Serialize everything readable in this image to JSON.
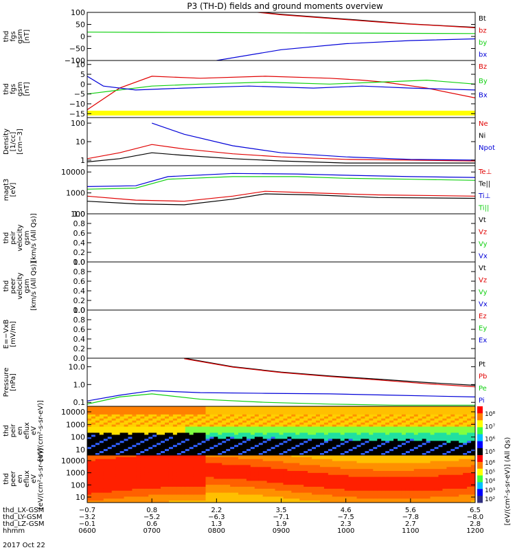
{
  "title": "P3 (TH-D) fields and ground moments overview",
  "date_label": "2017 Oct 22",
  "colors": {
    "black": "#000000",
    "red": "#e00000",
    "green": "#10d010",
    "blue": "#0000d8",
    "yellow": "#ffff00"
  },
  "chart_data": [
    {
      "id": "fgs-gsm",
      "type": "line",
      "ylabel": [
        "thd",
        "fgs",
        "gsm",
        "[nT]"
      ],
      "yticks": [
        "100",
        "50",
        "0",
        "−50",
        "−100"
      ],
      "ylim": [
        -100,
        100
      ],
      "legend": [
        {
          "text": "Bt",
          "color": "black"
        },
        {
          "text": "bz",
          "color": "red"
        },
        {
          "text": "by",
          "color": "green"
        },
        {
          "text": "bx",
          "color": "blue"
        }
      ],
      "series": [
        {
          "name": "Bt",
          "color": "black",
          "x": [
            0.35,
            0.5,
            0.6,
            0.7,
            0.8,
            0.9,
            1.0,
            1.1,
            1.2
          ],
          "y": [
            130,
            105,
            92,
            82,
            72,
            62,
            52,
            45,
            38
          ]
        },
        {
          "name": "bz",
          "color": "red",
          "x": [
            0.35,
            0.5,
            0.6,
            0.7,
            0.8,
            0.9,
            1.0,
            1.1,
            1.2
          ],
          "y": [
            130,
            104,
            90,
            80,
            70,
            60,
            51,
            44,
            36
          ]
        },
        {
          "name": "by",
          "color": "green",
          "x": [
            0,
            0.2,
            0.4,
            0.6,
            0.8,
            1.0,
            1.2
          ],
          "y": [
            18,
            17,
            16,
            15,
            14,
            13,
            12
          ]
        },
        {
          "name": "bx",
          "color": "blue",
          "x": [
            0.4,
            0.6,
            0.8,
            1.0,
            1.2
          ],
          "y": [
            -100,
            -55,
            -30,
            -17,
            -10
          ]
        }
      ]
    },
    {
      "id": "fgs-dsl",
      "type": "line",
      "ylabel": [
        "thd",
        "fgs",
        "gsm",
        "[nT]"
      ],
      "yticks": [
        "10",
        "5",
        "0",
        "−5",
        "−10",
        "−15"
      ],
      "ylim": [
        -17,
        12
      ],
      "legend": [
        {
          "text": "Bz",
          "color": "red"
        },
        {
          "text": "By",
          "color": "green"
        },
        {
          "text": "Bx",
          "color": "blue"
        }
      ],
      "series": [
        {
          "name": "Bz",
          "color": "red",
          "x": [
            0,
            0.1,
            0.2,
            0.35,
            0.55,
            0.75,
            0.85,
            0.92,
            1.05,
            1.2
          ],
          "y": [
            -13,
            -2,
            4,
            3,
            4,
            3,
            2,
            1,
            -2,
            -7
          ]
        },
        {
          "name": "By",
          "color": "green",
          "x": [
            0,
            0.1,
            0.2,
            0.35,
            0.55,
            0.75,
            0.9,
            1.05,
            1.2
          ],
          "y": [
            -5,
            -3,
            -1,
            0,
            1,
            0,
            1,
            2,
            0
          ]
        },
        {
          "name": "Bx",
          "color": "blue",
          "x": [
            0,
            0.05,
            0.15,
            0.3,
            0.5,
            0.7,
            0.85,
            1.0,
            1.2
          ],
          "y": [
            4,
            -1,
            -3,
            -2,
            -1,
            -2,
            -1,
            -2,
            -3
          ]
        }
      ]
    },
    {
      "id": "density",
      "type": "line",
      "ylabel": [
        "Density",
        "[1/cc]",
        "[cm−3]"
      ],
      "yticks": [
        "100",
        "10",
        "1"
      ],
      "yscale": "log",
      "ylim": [
        0.5,
        200
      ],
      "legend": [
        {
          "text": "Ne",
          "color": "red"
        },
        {
          "text": "Ni",
          "color": "black"
        },
        {
          "text": "Npot",
          "color": "blue"
        }
      ],
      "series": [
        {
          "name": "Ne",
          "color": "red",
          "x": [
            0,
            0.1,
            0.2,
            0.3,
            0.45,
            0.6,
            0.8,
            1.0,
            1.2
          ],
          "y": [
            1.2,
            2.5,
            7,
            4,
            2.2,
            1.5,
            1.1,
            1.0,
            0.9
          ]
        },
        {
          "name": "Ni",
          "color": "black",
          "x": [
            0,
            0.1,
            0.2,
            0.3,
            0.45,
            0.6,
            0.8,
            1.0,
            1.2
          ],
          "y": [
            0.8,
            1.2,
            2.5,
            1.8,
            1.2,
            0.9,
            0.7,
            0.7,
            0.7
          ]
        },
        {
          "name": "Npot",
          "color": "blue",
          "x": [
            0.2,
            0.3,
            0.45,
            0.6,
            0.8,
            1.0,
            1.2
          ],
          "y": [
            100,
            25,
            6,
            2.5,
            1.5,
            1.1,
            1.0
          ]
        }
      ]
    },
    {
      "id": "temperature",
      "type": "line",
      "ylabel": [
        "magt3",
        "[eV]"
      ],
      "yticks": [
        "10000",
        "1000",
        "100"
      ],
      "yscale": "log",
      "ylim": [
        100,
        20000
      ],
      "legend": [
        {
          "text": "Te⊥",
          "color": "red"
        },
        {
          "text": "Te||",
          "color": "black"
        },
        {
          "text": "Ti⊥",
          "color": "blue"
        },
        {
          "text": "Ti||",
          "color": "green"
        }
      ],
      "series": [
        {
          "name": "Ti⊥",
          "color": "blue",
          "x": [
            0,
            0.15,
            0.25,
            0.45,
            0.65,
            0.8,
            1.0,
            1.2
          ],
          "y": [
            2000,
            2200,
            6000,
            8500,
            8000,
            7000,
            6000,
            5500
          ]
        },
        {
          "name": "Ti||",
          "color": "green",
          "x": [
            0,
            0.15,
            0.25,
            0.45,
            0.65,
            0.8,
            1.0,
            1.2
          ],
          "y": [
            1500,
            1700,
            4500,
            6000,
            6000,
            5000,
            4500,
            4000
          ]
        },
        {
          "name": "Te⊥",
          "color": "red",
          "x": [
            0,
            0.15,
            0.3,
            0.45,
            0.55,
            0.7,
            0.9,
            1.2
          ],
          "y": [
            700,
            450,
            400,
            700,
            1200,
            1000,
            800,
            700
          ]
        },
        {
          "name": "Te||",
          "color": "black",
          "x": [
            0,
            0.15,
            0.3,
            0.45,
            0.55,
            0.7,
            0.9,
            1.2
          ],
          "y": [
            400,
            300,
            270,
            500,
            900,
            800,
            600,
            550
          ]
        }
      ]
    },
    {
      "id": "peir-velocity",
      "type": "line",
      "ylabel": [
        "thd",
        "peir",
        "velocity",
        "gsm",
        "[km/s (All Qs)]"
      ],
      "yticks": [
        "1.0",
        "0.8",
        "0.6",
        "0.4",
        "0.2",
        "0.0"
      ],
      "ylim": [
        0,
        1
      ],
      "legend": [
        {
          "text": "Vt",
          "color": "black"
        },
        {
          "text": "Vz",
          "color": "red"
        },
        {
          "text": "Vy",
          "color": "green"
        },
        {
          "text": "Vx",
          "color": "blue"
        }
      ],
      "series": []
    },
    {
      "id": "peer-velocity",
      "type": "line",
      "ylabel": [
        "thd",
        "peer",
        "velocity",
        "gsm",
        "[km/s (All Qs)]"
      ],
      "yticks": [
        "1.0",
        "0.8",
        "0.6",
        "0.4",
        "0.2",
        "0.0"
      ],
      "ylim": [
        0,
        1
      ],
      "legend": [
        {
          "text": "Vt",
          "color": "black"
        },
        {
          "text": "Vz",
          "color": "red"
        },
        {
          "text": "Vy",
          "color": "green"
        },
        {
          "text": "Vx",
          "color": "blue"
        }
      ],
      "series": []
    },
    {
      "id": "efield",
      "type": "line",
      "ylabel": [
        "E=−VxB",
        "[mV/m]"
      ],
      "yticks": [
        "1.0",
        "0.8",
        "0.6",
        "0.4",
        "0.2",
        "0.0"
      ],
      "ylim": [
        0,
        1
      ],
      "legend": [
        {
          "text": "Ez",
          "color": "red"
        },
        {
          "text": "Ey",
          "color": "green"
        },
        {
          "text": "Ex",
          "color": "blue"
        }
      ],
      "series": []
    },
    {
      "id": "pressure",
      "type": "line",
      "ylabel": [
        "Pressure",
        "[nPa]"
      ],
      "yticks": [
        "10.0",
        "1.0",
        "0.1"
      ],
      "yscale": "log",
      "ylim": [
        0.06,
        30
      ],
      "legend": [
        {
          "text": "Pt",
          "color": "black"
        },
        {
          "text": "Pb",
          "color": "red"
        },
        {
          "text": "Pe",
          "color": "green"
        },
        {
          "text": "Pi",
          "color": "blue"
        }
      ],
      "series": [
        {
          "name": "Pt",
          "color": "black",
          "x": [
            0.3,
            0.45,
            0.6,
            0.75,
            0.9,
            1.05,
            1.2
          ],
          "y": [
            30,
            10,
            5,
            3,
            2,
            1.3,
            0.9
          ]
        },
        {
          "name": "Pb",
          "color": "red",
          "x": [
            0.3,
            0.45,
            0.6,
            0.75,
            0.9,
            1.05,
            1.2
          ],
          "y": [
            28,
            9.5,
            4.7,
            2.8,
            1.8,
            1.1,
            0.75
          ]
        },
        {
          "name": "Pi",
          "color": "blue",
          "x": [
            0,
            0.1,
            0.2,
            0.35,
            0.55,
            0.75,
            0.95,
            1.2
          ],
          "y": [
            0.12,
            0.25,
            0.45,
            0.35,
            0.32,
            0.3,
            0.25,
            0.2
          ]
        },
        {
          "name": "Pe",
          "color": "green",
          "x": [
            0,
            0.1,
            0.2,
            0.35,
            0.55,
            0.75,
            0.95,
            1.2
          ],
          "y": [
            0.08,
            0.2,
            0.3,
            0.15,
            0.1,
            0.08,
            0.07,
            0.07
          ]
        }
      ]
    },
    {
      "id": "peir-spectrogram",
      "type": "heatmap",
      "ylabel": [
        "thd",
        "peir",
        "en",
        "eflux",
        "eV",
        "[eV/(cm²-s-sr-eV)]"
      ],
      "yticks": [
        "10000",
        "1000",
        "100",
        "10"
      ],
      "yscale": "log",
      "colorbar_ticks": [
        "10⁸",
        "10⁷",
        "10⁶",
        "10⁵"
      ]
    },
    {
      "id": "peer-spectrogram",
      "type": "heatmap",
      "ylabel": [
        "thd",
        "peer",
        "en",
        "eflux",
        "eV",
        "[eV/(cm²-s-sr-eV)]"
      ],
      "yticks": [
        "10000",
        "1000",
        "100",
        "10"
      ],
      "yscale": "log",
      "colorbar_ticks": [
        "10⁶",
        "10⁵",
        "10⁴",
        "10³",
        "10²"
      ]
    }
  ],
  "colorbar_label": "[eV/(cm²-s-sr-eV)] (All Qs)",
  "x_axis": {
    "rows": [
      {
        "label": "thd_LX-GSM",
        "values": [
          "−0.7",
          "0.8",
          "2.2",
          "3.5",
          "4.6",
          "5.6",
          "6.5"
        ]
      },
      {
        "label": "thd_LY-GSM",
        "values": [
          "−3.2",
          "−5.2",
          "−6.3",
          "−7.1",
          "−7.5",
          "−7.8",
          "−8.0"
        ]
      },
      {
        "label": "thd_LZ-GSM",
        "values": [
          "−0.1",
          "0.6",
          "1.3",
          "1.9",
          "2.3",
          "2.7",
          "2.8"
        ]
      },
      {
        "label": "hhmm",
        "values": [
          "0600",
          "0700",
          "0800",
          "0900",
          "1000",
          "1100",
          "1200"
        ]
      }
    ]
  }
}
